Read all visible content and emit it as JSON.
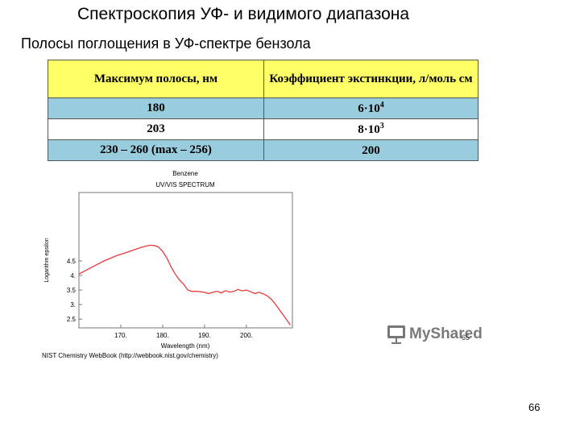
{
  "slide": {
    "title": "Спектроскопия УФ- и видимого диапазона",
    "subtitle": "Полосы поглощения в УФ-спектре бензола",
    "page_number": "66"
  },
  "table": {
    "headers": [
      "Максимум полосы, нм",
      "Коэффициент экстинкции, л/моль см"
    ],
    "rows": [
      {
        "max": "180",
        "coef_base": "6·10",
        "coef_exp": "4"
      },
      {
        "max": "203",
        "coef_base": "8·10",
        "coef_exp": "3"
      },
      {
        "max": "230 – 260 (max – 256)",
        "coef_base": "200",
        "coef_exp": ""
      }
    ]
  },
  "spectrum": {
    "title_line1": "Benzene",
    "title_line2": "UV/VIS SPECTRUM",
    "credit": "NIST Chemistry WebBook (http://webbook.nist.gov/chemistry)"
  },
  "chart_data": {
    "type": "line",
    "title": "Benzene UV/VIS SPECTRUM",
    "xlabel": "Wavelength (nm)",
    "ylabel": "Logarithm epsilon",
    "xlim": [
      160,
      211
    ],
    "ylim": [
      2.2,
      6.85
    ],
    "xticks": [
      "170.",
      "180.",
      "190.",
      "200."
    ],
    "xtick_values": [
      170,
      180,
      190,
      200
    ],
    "yticks": [
      "2.5",
      "3.",
      "3.5",
      "4.",
      "4.5"
    ],
    "ytick_values": [
      2.5,
      3.0,
      3.5,
      4.0,
      4.5
    ],
    "grid": false,
    "series": [
      {
        "x": [
          160,
          163,
          166,
          169,
          172,
          175,
          177,
          178,
          179,
          180,
          181,
          182,
          183,
          184,
          185,
          186,
          187,
          188,
          189,
          190,
          191,
          192,
          193,
          194,
          195,
          196,
          197,
          198,
          199,
          200,
          201,
          202,
          203,
          204,
          205,
          206,
          207,
          208,
          209,
          210.5
        ],
        "y": [
          4.05,
          4.28,
          4.5,
          4.68,
          4.82,
          4.97,
          5.04,
          5.03,
          4.98,
          4.83,
          4.6,
          4.3,
          4.05,
          3.85,
          3.7,
          3.5,
          3.45,
          3.46,
          3.44,
          3.42,
          3.38,
          3.42,
          3.46,
          3.4,
          3.48,
          3.43,
          3.45,
          3.52,
          3.47,
          3.5,
          3.44,
          3.38,
          3.42,
          3.37,
          3.3,
          3.18,
          3.0,
          2.8,
          2.6,
          2.3
        ]
      }
    ]
  },
  "watermark": {
    "text": "MyShared",
    "number": "65"
  },
  "colors": {
    "header_bg": "#ffff66",
    "row_blue": "#99ccdd",
    "curve": "#e8383b"
  }
}
